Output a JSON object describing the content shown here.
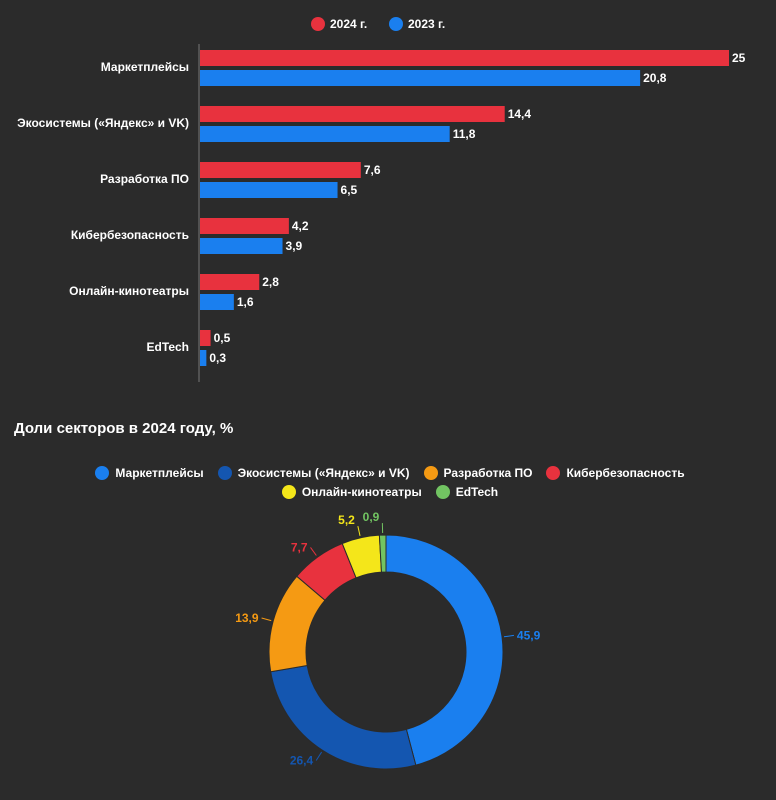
{
  "chart_data": [
    {
      "type": "bar",
      "orientation": "horizontal",
      "categories": [
        "Маркетплейсы",
        "Экосистемы («Яндекс» и VK)",
        "Разработка ПО",
        "Кибербезопасность",
        "Онлайн-кинотеатры",
        "EdTech"
      ],
      "series": [
        {
          "name": "2024 г.",
          "color": "#e8323e",
          "values": [
            25,
            14.4,
            7.6,
            4.2,
            2.8,
            0.5
          ],
          "labels": [
            "25",
            "14,4",
            "7,6",
            "4,2",
            "2,8",
            "0,5"
          ]
        },
        {
          "name": "2023 г.",
          "color": "#1a7fef",
          "values": [
            20.8,
            11.8,
            6.5,
            3.9,
            1.6,
            0.3
          ],
          "labels": [
            "20,8",
            "11,8",
            "6,5",
            "3,9",
            "1,6",
            "0,3"
          ]
        }
      ],
      "xlim": [
        0,
        25
      ],
      "legend_position": "top-center",
      "grid": false
    },
    {
      "type": "pie",
      "subtype": "donut",
      "title": "Доли секторов в 2024 году, %",
      "categories": [
        "Маркетплейсы",
        "Экосистемы («Яндекс» и VK)",
        "Разработка ПО",
        "Кибербезопасность",
        "Онлайн-кинотеатры",
        "EdTech"
      ],
      "values": [
        45.9,
        26.4,
        13.9,
        7.7,
        5.2,
        0.9
      ],
      "labels": [
        "45,9",
        "26,4",
        "13,9",
        "7,7",
        "5,2",
        "0,9"
      ],
      "colors": [
        "#1a7fef",
        "#1456b0",
        "#f59a13",
        "#e8323e",
        "#f4e61a",
        "#72c462"
      ],
      "label_colors": [
        "#1a7fef",
        "#1456b0",
        "#f59a13",
        "#e8323e",
        "#f4e61a",
        "#72c462"
      ],
      "legend_position": "top-center"
    }
  ]
}
